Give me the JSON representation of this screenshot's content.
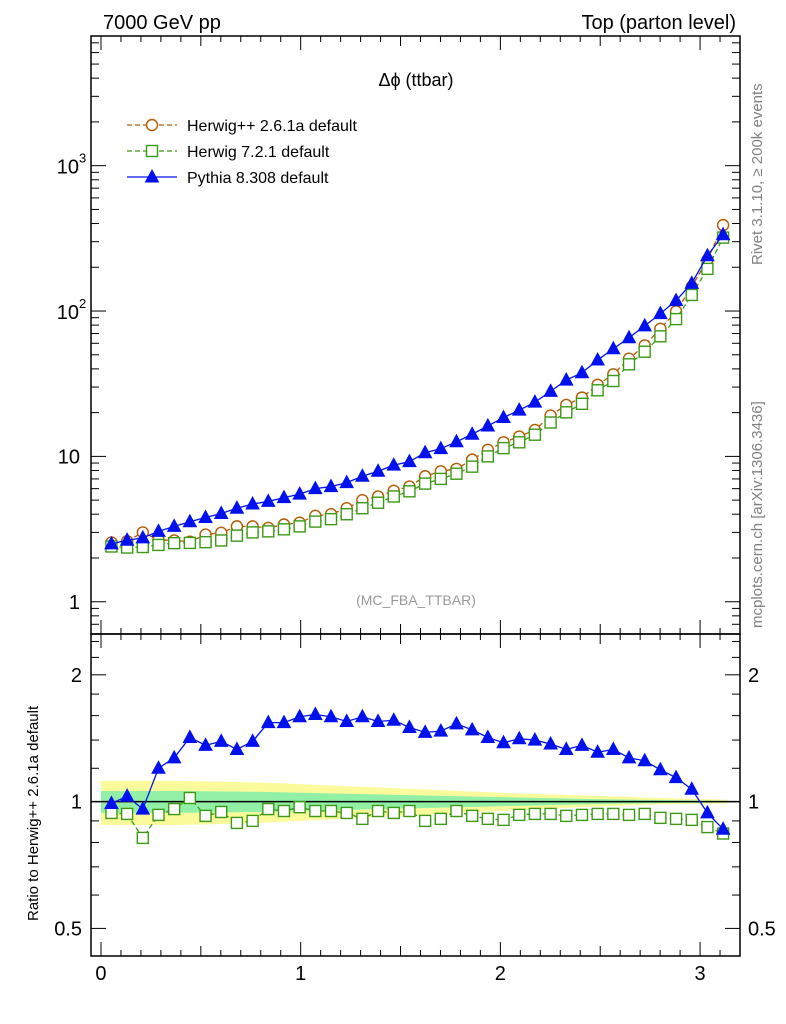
{
  "header": {
    "left": "7000 GeV pp",
    "right": "Top (parton level)"
  },
  "side_labels": {
    "rivet": "Rivet 3.1.10, ≥ 200k events",
    "mcplots": "mcplots.cern.ch [arXiv:1306.3436]"
  },
  "colors": {
    "herwigpp": "#b35900",
    "herwig7": "#3a9a13",
    "pythia": "#0011ee",
    "band_outer": "#fbfb9c",
    "band_inner": "#92f0a6"
  },
  "chart_data": [
    {
      "type": "line",
      "panel": "main",
      "title": "Δϕ (ttbar)",
      "watermark": "(MC_FBA_TTBAR)",
      "xlabel": "",
      "ylabel": "",
      "yscale": "log",
      "xlim": [
        -0.05,
        3.2
      ],
      "ylim": [
        0.6,
        7800
      ],
      "y_tick_labels": [
        {
          "value": 1,
          "label": "1"
        },
        {
          "value": 10,
          "label": "10"
        },
        {
          "value": 100,
          "label": "10^2"
        },
        {
          "value": 1000,
          "label": "10^3"
        }
      ],
      "legend_position": "top-left",
      "x": [
        0.0524,
        0.1309,
        0.2094,
        0.288,
        0.3665,
        0.4451,
        0.5236,
        0.6021,
        0.6807,
        0.7592,
        0.8378,
        0.9163,
        0.9948,
        1.0734,
        1.1519,
        1.2305,
        1.309,
        1.3875,
        1.4661,
        1.5446,
        1.6232,
        1.7017,
        1.7802,
        1.8588,
        1.9373,
        2.0159,
        2.0944,
        2.1729,
        2.2515,
        2.33,
        2.4086,
        2.4871,
        2.5656,
        2.6442,
        2.7227,
        2.8013,
        2.8798,
        2.9583,
        3.0369,
        3.1154
      ],
      "series": [
        {
          "name": "Herwig++ 2.6.1a default",
          "marker": "open-circle",
          "line": "dashed",
          "values": [
            2.56,
            2.61,
            3.0,
            2.67,
            2.64,
            2.59,
            2.9,
            2.98,
            3.3,
            3.3,
            3.22,
            3.4,
            3.5,
            3.9,
            4.0,
            4.4,
            5.0,
            5.3,
            5.8,
            6.2,
            7.3,
            7.9,
            8.2,
            9.5,
            11.1,
            12.5,
            13.7,
            15.2,
            19.1,
            22.6,
            25.4,
            31.1,
            36.7,
            47.0,
            58.0,
            75.5,
            99.4,
            147,
            225,
            390
          ]
        },
        {
          "name": "Herwig 7.2.1 default",
          "marker": "open-square",
          "line": "dashed",
          "values": [
            2.4,
            2.36,
            2.38,
            2.46,
            2.53,
            2.54,
            2.57,
            2.64,
            2.85,
            3.0,
            3.05,
            3.15,
            3.3,
            3.56,
            3.7,
            4.0,
            4.4,
            4.8,
            5.3,
            5.75,
            6.5,
            7.0,
            7.6,
            8.5,
            10.0,
            11.4,
            12.5,
            14.1,
            17.1,
            20.1,
            23.0,
            28.5,
            33.0,
            43.0,
            52.5,
            67.0,
            88.0,
            129,
            195,
            320
          ]
        },
        {
          "name": "Pythia 8.308 default",
          "marker": "filled-triangle",
          "line": "solid",
          "values": [
            2.5,
            2.65,
            2.75,
            3.05,
            3.3,
            3.55,
            3.8,
            4.05,
            4.4,
            4.7,
            4.9,
            5.2,
            5.5,
            6.0,
            6.2,
            6.6,
            7.3,
            7.9,
            8.7,
            9.2,
            10.6,
            11.3,
            12.6,
            14.2,
            16.2,
            18.5,
            20.8,
            23.6,
            28.0,
            33.5,
            37.6,
            46.0,
            55.0,
            65.5,
            79.0,
            96.0,
            118,
            155,
            240,
            335
          ]
        }
      ]
    },
    {
      "type": "line",
      "panel": "ratio",
      "xlabel": "",
      "ylabel": "Ratio to Herwig++ 2.6.1a default",
      "yscale": "log",
      "xlim": [
        -0.05,
        3.2
      ],
      "ylim": [
        0.43,
        2.5
      ],
      "x_tick_labels": [
        {
          "value": 0,
          "label": "0"
        },
        {
          "value": 1,
          "label": "1"
        },
        {
          "value": 2,
          "label": "2"
        },
        {
          "value": 3,
          "label": "3"
        }
      ],
      "y_tick_labels": [
        {
          "value": 0.5,
          "label": "0.5"
        },
        {
          "value": 1,
          "label": "1"
        },
        {
          "value": 2,
          "label": "2"
        }
      ],
      "reference_line": 1,
      "band_x": [
        0.0,
        0.4,
        0.8,
        1.2,
        1.6,
        2.0,
        2.4,
        2.8,
        3.1416
      ],
      "band_outer": {
        "low": [
          0.88,
          0.88,
          0.89,
          0.91,
          0.93,
          0.95,
          0.97,
          0.985,
          0.99
        ],
        "high": [
          1.12,
          1.12,
          1.11,
          1.09,
          1.07,
          1.05,
          1.035,
          1.02,
          1.01
        ]
      },
      "band_inner": {
        "low": [
          0.94,
          0.94,
          0.945,
          0.955,
          0.965,
          0.975,
          0.985,
          0.992,
          0.995
        ],
        "high": [
          1.06,
          1.06,
          1.055,
          1.045,
          1.035,
          1.025,
          1.015,
          1.008,
          1.005
        ]
      },
      "series": [
        {
          "name": "Herwig 7.2.1 default",
          "marker": "open-square",
          "line": "dashed",
          "values": [
            0.94,
            0.935,
            0.82,
            0.93,
            0.96,
            1.02,
            0.925,
            0.945,
            0.89,
            0.9,
            0.96,
            0.95,
            0.97,
            0.95,
            0.95,
            0.94,
            0.91,
            0.95,
            0.94,
            0.95,
            0.9,
            0.91,
            0.95,
            0.925,
            0.91,
            0.905,
            0.93,
            0.935,
            0.935,
            0.925,
            0.93,
            0.935,
            0.935,
            0.93,
            0.935,
            0.915,
            0.91,
            0.905,
            0.87,
            0.84
          ]
        },
        {
          "name": "Pythia 8.308 default",
          "marker": "filled-triangle",
          "line": "solid",
          "values": [
            0.99,
            1.03,
            0.96,
            1.2,
            1.27,
            1.42,
            1.36,
            1.39,
            1.33,
            1.39,
            1.54,
            1.54,
            1.59,
            1.61,
            1.59,
            1.55,
            1.59,
            1.55,
            1.56,
            1.5,
            1.46,
            1.47,
            1.53,
            1.48,
            1.42,
            1.38,
            1.41,
            1.4,
            1.37,
            1.33,
            1.36,
            1.31,
            1.33,
            1.27,
            1.25,
            1.19,
            1.14,
            1.07,
            0.94,
            0.86
          ]
        }
      ]
    }
  ]
}
